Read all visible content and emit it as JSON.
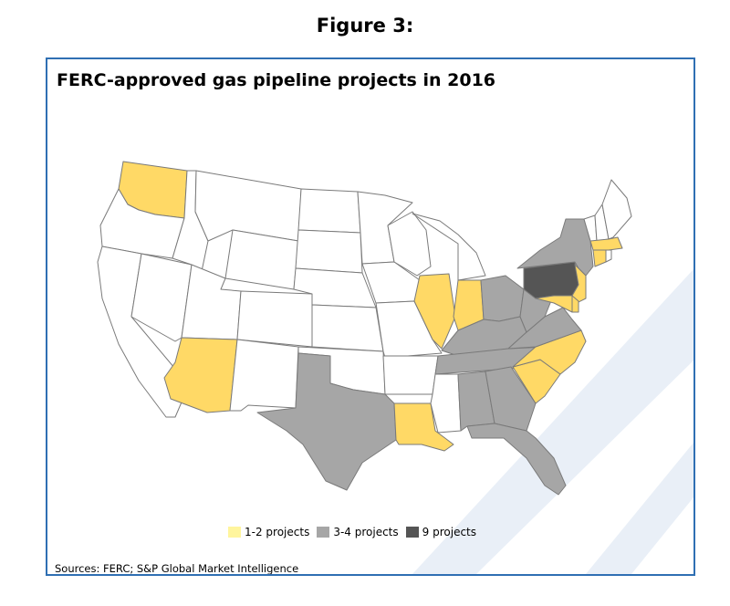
{
  "figure_label": "Figure 3:",
  "map_title": "FERC-approved gas pipeline projects in 2016",
  "source": "Sources: FERC; S&P Global Market Intelligence",
  "legend": [
    {
      "label": "1-2 projects",
      "color": "#fff59d"
    },
    {
      "label": "3-4 projects",
      "color": "#a6a6a6"
    },
    {
      "label": "9 projects",
      "color": "#555555"
    }
  ],
  "colors": {
    "none": "#ffffff",
    "yellow": "#ffd966",
    "gray": "#a6a6a6",
    "dark": "#555555",
    "border": "#2f6fb3",
    "swoosh": "#e9eff7"
  },
  "state_categories": {
    "WA": "1-2 projects",
    "AZ": "1-2 projects",
    "LA": "1-2 projects",
    "IL": "1-2 projects",
    "IN": "1-2 projects",
    "NC": "1-2 projects",
    "SC": "1-2 projects",
    "NJ": "1-2 projects",
    "MD": "1-2 projects",
    "DE": "1-2 projects",
    "CT": "1-2 projects",
    "MA": "1-2 projects",
    "TX": "3-4 projects",
    "OH": "3-4 projects",
    "KY": "3-4 projects",
    "TN": "3-4 projects",
    "WV": "3-4 projects",
    "VA": "3-4 projects",
    "NY": "3-4 projects",
    "AL": "3-4 projects",
    "GA": "3-4 projects",
    "FL": "3-4 projects",
    "PA": "9 projects"
  }
}
